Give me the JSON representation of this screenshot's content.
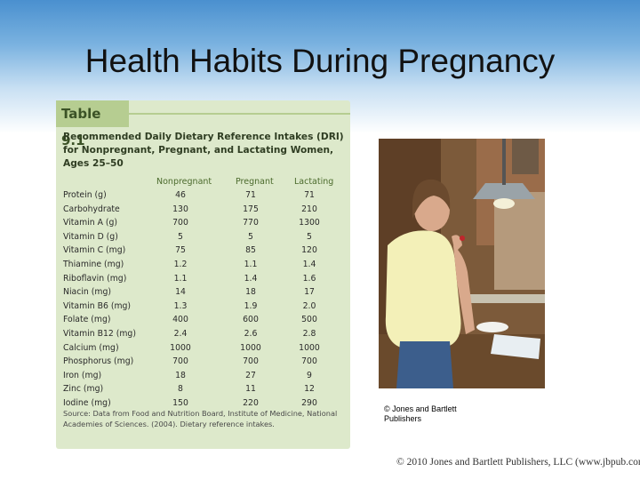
{
  "slide": {
    "title": "Health Habits During Pregnancy",
    "copyright": "© 2010 Jones and Bartlett Publishers, LLC (www.jbpub.com)"
  },
  "table": {
    "label": "Table 9.1",
    "heading": "Recommended Daily Dietary Reference Intakes (DRI) for Nonpregnant, Pregnant, and Lactating Women, Ages 25–50",
    "columns": [
      "Nonpregnant",
      "Pregnant",
      "Lactating"
    ],
    "rows": [
      {
        "nutrient": "Protein (g)",
        "nonpregnant": "46",
        "pregnant": "71",
        "lactating": "71"
      },
      {
        "nutrient": "Carbohydrate",
        "nonpregnant": "130",
        "pregnant": "175",
        "lactating": "210"
      },
      {
        "nutrient": "Vitamin A (g)",
        "nonpregnant": "700",
        "pregnant": "770",
        "lactating": "1300"
      },
      {
        "nutrient": "Vitamin D (g)",
        "nonpregnant": "5",
        "pregnant": "5",
        "lactating": "5"
      },
      {
        "nutrient": "Vitamin C (mg)",
        "nonpregnant": "75",
        "pregnant": "85",
        "lactating": "120"
      },
      {
        "nutrient": "Thiamine (mg)",
        "nonpregnant": "1.2",
        "pregnant": "1.1",
        "lactating": "1.4"
      },
      {
        "nutrient": "Riboflavin (mg)",
        "nonpregnant": "1.1",
        "pregnant": "1.4",
        "lactating": "1.6"
      },
      {
        "nutrient": "Niacin (mg)",
        "nonpregnant": "14",
        "pregnant": "18",
        "lactating": "17"
      },
      {
        "nutrient": "Vitamin B6 (mg)",
        "nonpregnant": "1.3",
        "pregnant": "1.9",
        "lactating": "2.0"
      },
      {
        "nutrient": "Folate (mg)",
        "nonpregnant": "400",
        "pregnant": "600",
        "lactating": "500"
      },
      {
        "nutrient": "Vitamin B12 (mg)",
        "nonpregnant": "2.4",
        "pregnant": "2.6",
        "lactating": "2.8"
      },
      {
        "nutrient": "Calcium (mg)",
        "nonpregnant": "1000",
        "pregnant": "1000",
        "lactating": "1000"
      },
      {
        "nutrient": "Phosphorus (mg)",
        "nonpregnant": "700",
        "pregnant": "700",
        "lactating": "700"
      },
      {
        "nutrient": "Iron (mg)",
        "nonpregnant": "18",
        "pregnant": "27",
        "lactating": "9"
      },
      {
        "nutrient": "Zinc (mg)",
        "nonpregnant": "8",
        "pregnant": "11",
        "lactating": "12"
      },
      {
        "nutrient": "Iodine (mg)",
        "nonpregnant": "150",
        "pregnant": "220",
        "lactating": "290"
      }
    ],
    "source": "Source: Data from Food and Nutrition Board, Institute of Medicine, National Academies of Sciences. (2004). Dietary reference intakes."
  },
  "photo": {
    "caption": "© Jones and Bartlett Publishers"
  }
}
